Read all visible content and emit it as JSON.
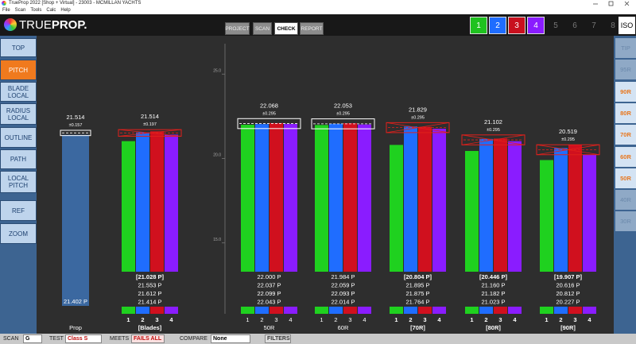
{
  "window": {
    "title": "TrueProp 2022 [Shop + Virtual] - 23003 - MCMILLAN YACHTS",
    "menu": [
      "File",
      "Scan",
      "Tools",
      "Calc",
      "Help"
    ]
  },
  "header": {
    "logo_light": "TRUE",
    "logo_bold": "PROP.",
    "tabs": [
      "PROJECT",
      "SCAN",
      "CHECK",
      "REPORT"
    ],
    "active_tab": 2,
    "blade_buttons": [
      {
        "label": "1",
        "color": "#1fc21f"
      },
      {
        "label": "2",
        "color": "#1f6dff"
      },
      {
        "label": "3",
        "color": "#c8101e"
      },
      {
        "label": "4",
        "color": "#8a1cff"
      },
      {
        "label": "5"
      },
      {
        "label": "6"
      },
      {
        "label": "7"
      },
      {
        "label": "8"
      }
    ],
    "iso": "ISO"
  },
  "left_nav": [
    {
      "lines": [
        "TOP"
      ]
    },
    {
      "lines": [
        "PITCH"
      ],
      "active": true
    },
    {
      "lines": [
        "BLADE",
        "LOCAL"
      ]
    },
    {
      "lines": [
        "RADIUS",
        "LOCAL"
      ]
    },
    {
      "lines": [
        "OUTLINE"
      ]
    },
    {
      "lines": [
        "PATH"
      ]
    },
    {
      "lines": [
        "LOCAL",
        "PITCH"
      ]
    },
    {
      "lines": [
        "REF"
      ]
    },
    {
      "lines": [
        "ZOOM"
      ]
    }
  ],
  "right_nav": [
    {
      "label": "TIP",
      "enabled": false
    },
    {
      "label": "95R",
      "enabled": false
    },
    {
      "label": "90R",
      "enabled": true
    },
    {
      "label": "80R",
      "enabled": true
    },
    {
      "label": "70R",
      "enabled": true
    },
    {
      "label": "60R",
      "enabled": true
    },
    {
      "label": "50R",
      "enabled": true
    },
    {
      "label": "40R",
      "enabled": false
    },
    {
      "label": "30R",
      "enabled": false
    }
  ],
  "chart_data": {
    "type": "bar",
    "ylim": [
      10.8,
      26.8
    ],
    "yticks": [
      {
        "value": 25,
        "label": "25.0"
      },
      {
        "value": 20,
        "label": "20.0"
      },
      {
        "value": 15,
        "label": "15.0"
      }
    ],
    "prop": {
      "label": "Prop",
      "value": 21.402,
      "value_label": "21.402 P",
      "target": 21.514,
      "tolerance": 0.157,
      "tolerance_label": "±0.157",
      "color": "#3b68a0"
    },
    "categories": [
      "[Blades]",
      "50R",
      "60R",
      "[70R]",
      "[80R]",
      "[90R]"
    ],
    "targets": [
      21.514,
      22.068,
      22.053,
      21.829,
      21.102,
      20.519
    ],
    "tolerances": [
      0.197,
      0.295,
      0.295,
      0.295,
      0.295,
      0.295
    ],
    "tolerance_labels": [
      "±0.197",
      "±0.295",
      "±0.295",
      "±0.295",
      "±0.295",
      "±0.295"
    ],
    "pass": [
      false,
      true,
      true,
      false,
      false,
      false
    ],
    "series": [
      {
        "name": "1",
        "color": "#1fd11f",
        "values": [
          21.028,
          22.0,
          21.984,
          20.804,
          20.446,
          19.907
        ],
        "value_labels": [
          "[21.028 P]",
          "22.000 P",
          "21.984 P",
          "[20.804 P]",
          "[20.446 P]",
          "[19.907 P]"
        ]
      },
      {
        "name": "2",
        "color": "#1f6dff",
        "values": [
          21.553,
          22.037,
          22.059,
          21.895,
          21.16,
          20.616
        ],
        "value_labels": [
          "21.553 P",
          "22.037 P",
          "22.059 P",
          "21.895 P",
          "21.160 P",
          "20.616 P"
        ]
      },
      {
        "name": "3",
        "color": "#d0101e",
        "values": [
          21.612,
          22.099,
          22.093,
          21.875,
          21.182,
          20.812
        ],
        "value_labels": [
          "21.612 P",
          "22.099 P",
          "22.093 P",
          "21.875 P",
          "21.182 P",
          "20.812 P"
        ]
      },
      {
        "name": "4",
        "color": "#8a1cff",
        "values": [
          21.414,
          22.043,
          22.014,
          21.764,
          21.023,
          20.227
        ],
        "value_labels": [
          "21.414 P",
          "22.043 P",
          "22.014 P",
          "21.764 P",
          "21.023 P",
          "20.227 P"
        ]
      }
    ]
  },
  "status": {
    "scan_label": "SCAN",
    "scan": "G",
    "test_label": "TEST",
    "test": "Class S",
    "meets_label": "MEETS",
    "meets": "FAILS ALL",
    "compare_label": "COMPARE",
    "compare": "None",
    "filters": "FILTERS"
  }
}
